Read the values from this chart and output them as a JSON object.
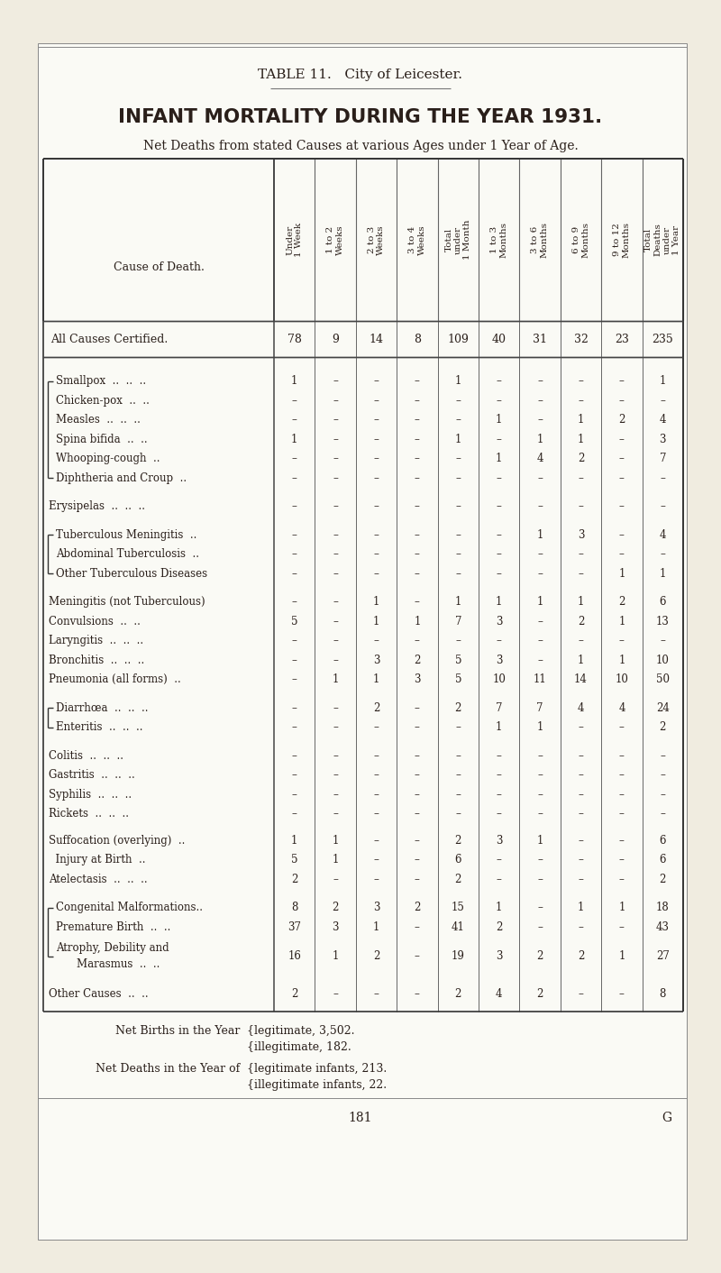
{
  "page_bg": "#f0ece0",
  "inner_bg": "#fafaf5",
  "title_line1": "TABLE 11.   City of Leicester.",
  "title_line2": "INFANT MORTALITY DURING THE YEAR 1931.",
  "subtitle": "Net Deaths from stated Causes at various Ages under 1 Year of Age.",
  "col_headers_short": [
    "Under\n1 Week",
    "1 to 2\nWeeks",
    "2 to 3\nWeeks",
    "3 to 4\nWeeks",
    "Total\nunder\n1 Month",
    "1 to 3\nMonths",
    "3 to 6\nMonths",
    "6 to 9\nMonths",
    "9 to 12\nMonths",
    "Total\nDeaths\nunder\n1 Year"
  ],
  "summary_label": "All Causes Certified.",
  "summary_values": [
    "78",
    "9",
    "14",
    "8",
    "109",
    "40",
    "31",
    "32",
    "23",
    "235"
  ],
  "rows": [
    {
      "label": "Smallpox  ..  ..  ..",
      "values": [
        "1",
        "–",
        "–",
        "–",
        "1",
        "–",
        "–",
        "–",
        "–",
        "1"
      ],
      "group": "A",
      "extra_before": 10
    },
    {
      "label": "Chicken-pox  ..  ..",
      "values": [
        "–",
        "–",
        "–",
        "–",
        "–",
        "–",
        "–",
        "–",
        "–",
        "–"
      ],
      "group": "A",
      "extra_before": 0
    },
    {
      "label": "Measles  ..  ..  ..",
      "values": [
        "–",
        "–",
        "–",
        "–",
        "–",
        "1",
        "–",
        "1",
        "2",
        "4"
      ],
      "group": "A",
      "extra_before": 0
    },
    {
      "label": "Spina bifida  ..  ..",
      "values": [
        "1",
        "–",
        "–",
        "–",
        "1",
        "–",
        "1",
        "1",
        "–",
        "3"
      ],
      "group": "A",
      "extra_before": 0
    },
    {
      "label": "Whooping-cough  ..",
      "values": [
        "–",
        "–",
        "–",
        "–",
        "–",
        "1",
        "4",
        "2",
        "–",
        "7"
      ],
      "group": "A",
      "extra_before": 0
    },
    {
      "label": "Diphtheria and Croup  ..",
      "values": [
        "–",
        "–",
        "–",
        "–",
        "–",
        "–",
        "–",
        "–",
        "–",
        "–"
      ],
      "group": "A",
      "extra_before": 0
    },
    {
      "label": "Erysipelas  ..  ..  ..",
      "values": [
        "–",
        "–",
        "–",
        "–",
        "–",
        "–",
        "–",
        "–",
        "–",
        "–"
      ],
      "group": null,
      "extra_before": 10
    },
    {
      "label": "Tuberculous Meningitis  ..",
      "values": [
        "–",
        "–",
        "–",
        "–",
        "–",
        "–",
        "1",
        "3",
        "–",
        "4"
      ],
      "group": "B",
      "extra_before": 10
    },
    {
      "label": "Abdominal Tuberculosis  ..",
      "values": [
        "–",
        "–",
        "–",
        "–",
        "–",
        "–",
        "–",
        "–",
        "–",
        "–"
      ],
      "group": "B",
      "extra_before": 0
    },
    {
      "label": "Other Tuberculous Diseases",
      "values": [
        "–",
        "–",
        "–",
        "–",
        "–",
        "–",
        "–",
        "–",
        "1",
        "1"
      ],
      "group": "B",
      "extra_before": 0
    },
    {
      "label": "Meningitis (not Tuberculous)",
      "values": [
        "–",
        "–",
        "1",
        "–",
        "1",
        "1",
        "1",
        "1",
        "2",
        "6"
      ],
      "group": null,
      "extra_before": 10
    },
    {
      "label": "Convulsions  ..  ..",
      "values": [
        "5",
        "–",
        "1",
        "1",
        "7",
        "3",
        "–",
        "2",
        "1",
        "13"
      ],
      "group": null,
      "extra_before": 0
    },
    {
      "label": "Laryngitis  ..  ..  ..",
      "values": [
        "–",
        "–",
        "–",
        "–",
        "–",
        "–",
        "–",
        "–",
        "–",
        "–"
      ],
      "group": null,
      "extra_before": 0
    },
    {
      "label": "Bronchitis  ..  ..  ..",
      "values": [
        "–",
        "–",
        "3",
        "2",
        "5",
        "3",
        "–",
        "1",
        "1",
        "10"
      ],
      "group": null,
      "extra_before": 0
    },
    {
      "label": "Pneumonia (all forms)  ..",
      "values": [
        "–",
        "1",
        "1",
        "3",
        "5",
        "10",
        "11",
        "14",
        "10",
        "50"
      ],
      "group": null,
      "extra_before": 0
    },
    {
      "label": "Diarrhœa  ..  ..  ..",
      "values": [
        "–",
        "–",
        "2",
        "–",
        "2",
        "7",
        "7",
        "4",
        "4",
        "24"
      ],
      "group": "C",
      "extra_before": 10
    },
    {
      "label": "Enteritis  ..  ..  ..",
      "values": [
        "–",
        "–",
        "–",
        "–",
        "–",
        "1",
        "1",
        "–",
        "–",
        "2"
      ],
      "group": "C",
      "extra_before": 0
    },
    {
      "label": "Colitis  ..  ..  ..",
      "values": [
        "–",
        "–",
        "–",
        "–",
        "–",
        "–",
        "–",
        "–",
        "–",
        "–"
      ],
      "group": null,
      "extra_before": 10
    },
    {
      "label": "Gastritis  ..  ..  ..",
      "values": [
        "–",
        "–",
        "–",
        "–",
        "–",
        "–",
        "–",
        "–",
        "–",
        "–"
      ],
      "group": null,
      "extra_before": 0
    },
    {
      "label": "Syphilis  ..  ..  ..",
      "values": [
        "–",
        "–",
        "–",
        "–",
        "–",
        "–",
        "–",
        "–",
        "–",
        "–"
      ],
      "group": null,
      "extra_before": 0
    },
    {
      "label": "Rickets  ..  ..  ..",
      "values": [
        "–",
        "–",
        "–",
        "–",
        "–",
        "–",
        "–",
        "–",
        "–",
        "–"
      ],
      "group": null,
      "extra_before": 0
    },
    {
      "label": "Suffocation (overlying)  ..",
      "values": [
        "1",
        "1",
        "–",
        "–",
        "2",
        "3",
        "1",
        "–",
        "–",
        "6"
      ],
      "group": null,
      "extra_before": 8
    },
    {
      "label": "  Injury at Birth  ..",
      "values": [
        "5",
        "1",
        "–",
        "–",
        "6",
        "–",
        "–",
        "–",
        "–",
        "6"
      ],
      "group": null,
      "extra_before": 0
    },
    {
      "label": "Atelectasis  ..  ..  ..",
      "values": [
        "2",
        "–",
        "–",
        "–",
        "2",
        "–",
        "–",
        "–",
        "–",
        "2"
      ],
      "group": null,
      "extra_before": 0
    },
    {
      "label": "Congenital Malformations..",
      "values": [
        "8",
        "2",
        "3",
        "2",
        "15",
        "1",
        "–",
        "1",
        "1",
        "18"
      ],
      "group": "D",
      "extra_before": 10
    },
    {
      "label": "Premature Birth  ..  ..",
      "values": [
        "37",
        "3",
        "1",
        "–",
        "41",
        "2",
        "–",
        "–",
        "–",
        "43"
      ],
      "group": "D",
      "extra_before": 0
    },
    {
      "label": "Atrophy, Debility and\n    Marasmus  ..  ..",
      "values": [
        "16",
        "1",
        "2",
        "–",
        "19",
        "3",
        "2",
        "2",
        "1",
        "27"
      ],
      "group": "D",
      "extra_before": 0,
      "two_line": true
    },
    {
      "label": "Other Causes  ..  ..",
      "values": [
        "2",
        "–",
        "–",
        "–",
        "2",
        "4",
        "2",
        "–",
        "–",
        "8"
      ],
      "group": null,
      "extra_before": 10
    }
  ],
  "page_number": "181",
  "page_letter": "G"
}
